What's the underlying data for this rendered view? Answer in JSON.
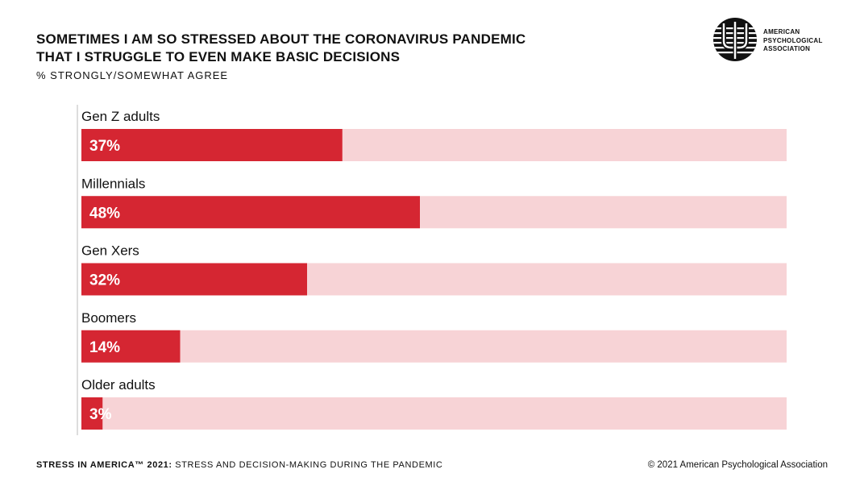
{
  "header": {
    "title": "SOMETIMES I AM SO STRESSED ABOUT THE CORONAVIRUS PANDEMIC THAT I STRUGGLE TO EVEN MAKE BASIC DECISIONS",
    "subtitle": "% STRONGLY/SOMEWHAT AGREE"
  },
  "logo": {
    "line1": "AMERICAN",
    "line2": "PSYCHOLOGICAL",
    "line3": "ASSOCIATION"
  },
  "footer": {
    "left_bold": "STRESS IN AMERICA™ 2021:",
    "left_text": " STRESS AND DECISION-MAKING DURING THE PANDEMIC",
    "right": "© 2021 American Psychological Association"
  },
  "colors": {
    "bar": "#d52632",
    "track": "#f7d3d6",
    "axis": "#bbbbbb",
    "text": "#111111"
  },
  "chart_data": {
    "type": "bar",
    "orientation": "horizontal",
    "title": "SOMETIMES I AM SO STRESSED ABOUT THE CORONAVIRUS PANDEMIC THAT I STRUGGLE TO EVEN MAKE BASIC DECISIONS",
    "subtitle": "% STRONGLY/SOMEWHAT AGREE",
    "categories": [
      "Gen Z adults",
      "Millennials",
      "Gen Xers",
      "Boomers",
      "Older adults"
    ],
    "values": [
      37,
      48,
      32,
      14,
      3
    ],
    "value_labels": [
      "37%",
      "48%",
      "32%",
      "14%",
      "3%"
    ],
    "xlim": [
      0,
      100
    ],
    "grid": false,
    "legend": "none"
  }
}
